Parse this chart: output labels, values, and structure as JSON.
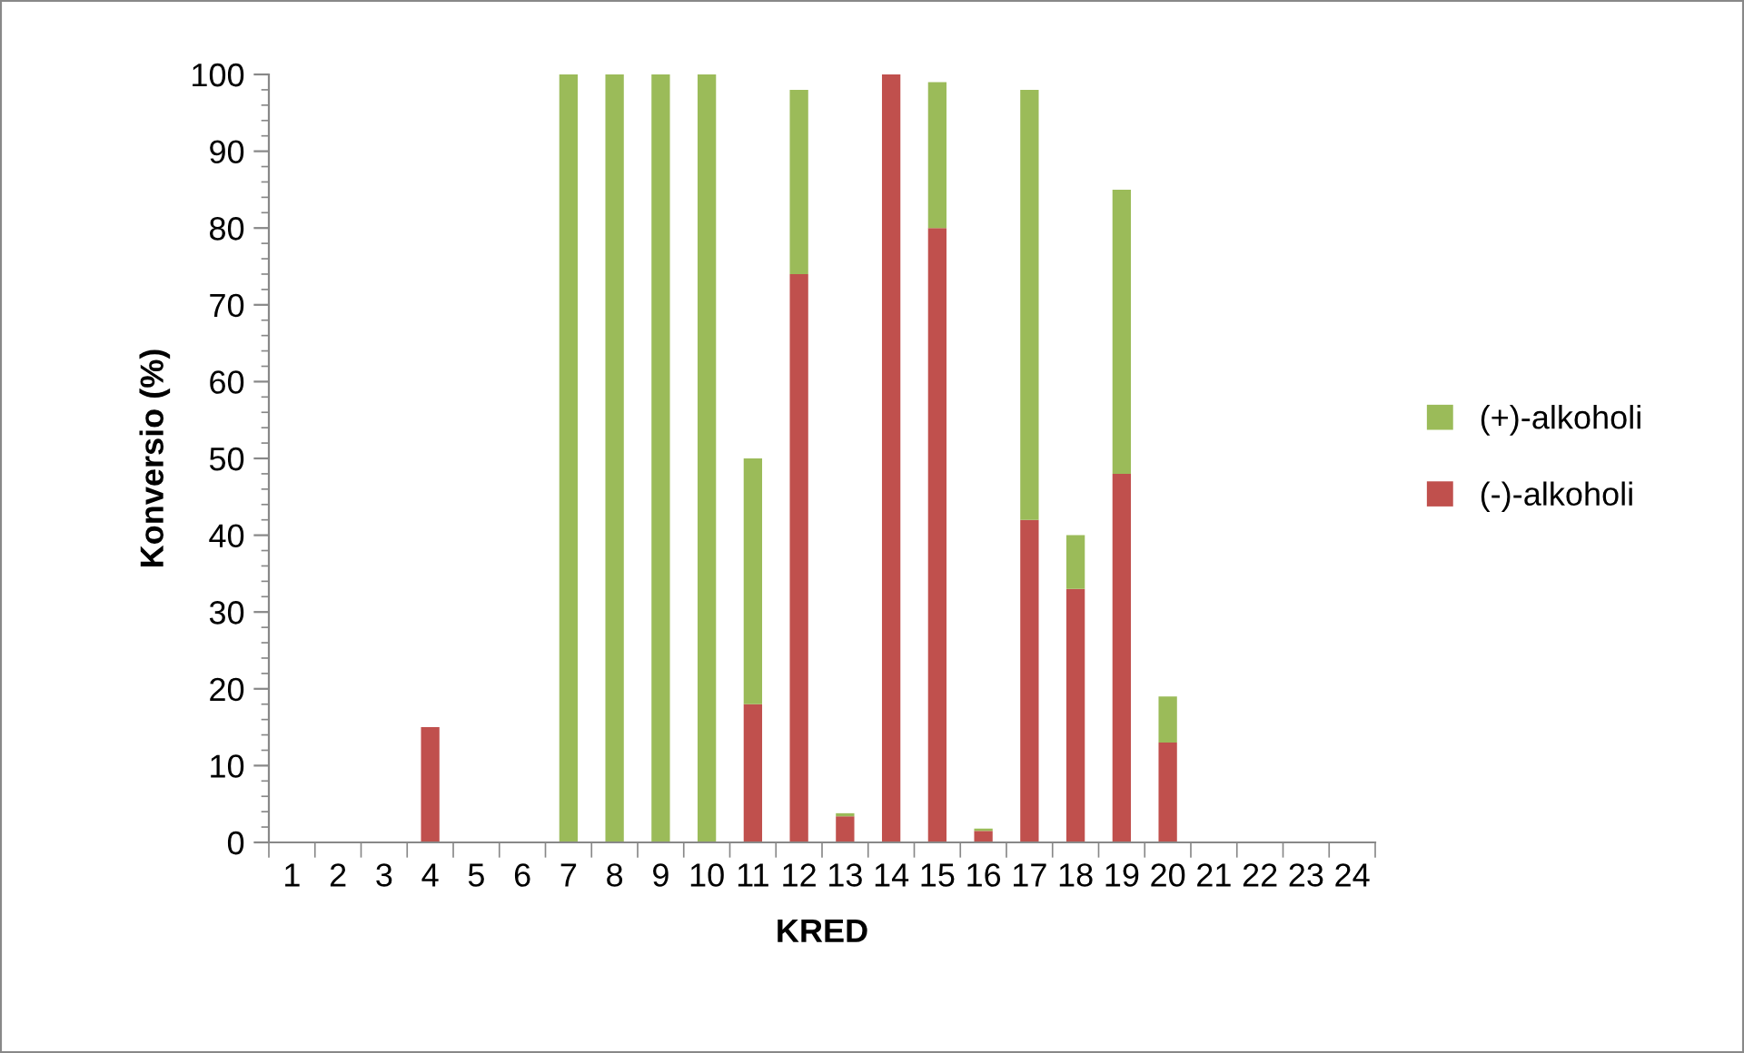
{
  "chart_data": {
    "type": "bar",
    "stacked": true,
    "xlabel": "KRED",
    "ylabel": "Konversio (%)",
    "categories": [
      "1",
      "2",
      "3",
      "4",
      "5",
      "6",
      "7",
      "8",
      "9",
      "10",
      "11",
      "12",
      "13",
      "14",
      "15",
      "16",
      "17",
      "18",
      "19",
      "20",
      "21",
      "22",
      "23",
      "24"
    ],
    "series": [
      {
        "name": "(-)-alkoholi",
        "color": "#c0504d",
        "values": [
          0,
          0,
          0,
          15,
          0,
          0,
          0,
          0,
          0,
          0,
          18,
          74,
          3.4,
          100,
          80,
          1.5,
          42,
          33,
          48,
          13,
          0,
          0,
          0,
          0
        ]
      },
      {
        "name": "(+)-alkoholi",
        "color": "#9bbb59",
        "values": [
          0,
          0,
          0,
          0,
          0,
          0,
          100,
          100,
          100,
          100,
          32,
          24,
          0.4,
          0,
          19,
          0.3,
          56,
          7,
          37,
          6,
          0,
          0,
          0,
          0
        ]
      }
    ],
    "ylim": [
      0,
      100
    ],
    "yticks": [
      0,
      10,
      20,
      30,
      40,
      50,
      60,
      70,
      80,
      90,
      100
    ],
    "grid": false,
    "legend": "right"
  }
}
